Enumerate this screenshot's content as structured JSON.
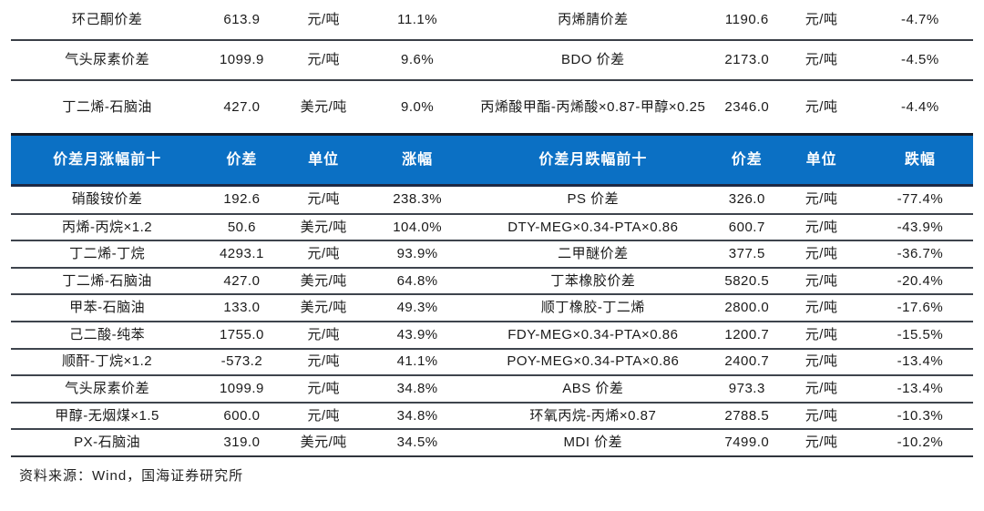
{
  "colors": {
    "header_bg": "#0b70c4",
    "header_text": "#ffffff",
    "row_line": "#3e444d",
    "text": "#1a1a1a"
  },
  "top_table": {
    "description": "continuation rows of spread table above the monthly top-10 section",
    "columns": [
      "name_left",
      "spread_left",
      "unit_left",
      "pct_left",
      "name_right",
      "spread_right",
      "unit_right",
      "pct_right"
    ],
    "rows": [
      [
        "环己酮价差",
        "613.9",
        "元/吨",
        "11.1%",
        "丙烯腈价差",
        "1190.6",
        "元/吨",
        "-4.7%"
      ],
      [
        "气头尿素价差",
        "1099.9",
        "元/吨",
        "9.6%",
        "BDO 价差",
        "2173.0",
        "元/吨",
        "-4.5%"
      ],
      [
        "丁二烯-石脑油",
        "427.0",
        "美元/吨",
        "9.0%",
        "丙烯酸甲酯-丙烯酸×0.87-甲醇×0.25",
        "2346.0",
        "元/吨",
        "-4.4%"
      ]
    ]
  },
  "header": {
    "gainers_title": "价差月涨幅前十",
    "gainers_spread": "价差",
    "gainers_unit": "单位",
    "gainers_change": "涨幅",
    "losers_title": "价差月跌幅前十",
    "losers_spread": "价差",
    "losers_unit": "单位",
    "losers_change": "跌幅"
  },
  "main_table": {
    "columns": [
      "gainer_name",
      "gainer_spread",
      "gainer_unit",
      "gainer_change",
      "loser_name",
      "loser_spread",
      "loser_unit",
      "loser_change"
    ],
    "rows": [
      [
        "硝酸铵价差",
        "192.6",
        "元/吨",
        "238.3%",
        "PS 价差",
        "326.0",
        "元/吨",
        "-77.4%"
      ],
      [
        "丙烯-丙烷×1.2",
        "50.6",
        "美元/吨",
        "104.0%",
        "DTY-MEG×0.34-PTA×0.86",
        "600.7",
        "元/吨",
        "-43.9%"
      ],
      [
        "丁二烯-丁烷",
        "4293.1",
        "元/吨",
        "93.9%",
        "二甲醚价差",
        "377.5",
        "元/吨",
        "-36.7%"
      ],
      [
        "丁二烯-石脑油",
        "427.0",
        "美元/吨",
        "64.8%",
        "丁苯橡胶价差",
        "5820.5",
        "元/吨",
        "-20.4%"
      ],
      [
        "甲苯-石脑油",
        "133.0",
        "美元/吨",
        "49.3%",
        "顺丁橡胶-丁二烯",
        "2800.0",
        "元/吨",
        "-17.6%"
      ],
      [
        "己二酸-纯苯",
        "1755.0",
        "元/吨",
        "43.9%",
        "FDY-MEG×0.34-PTA×0.86",
        "1200.7",
        "元/吨",
        "-15.5%"
      ],
      [
        "顺酐-丁烷×1.2",
        "-573.2",
        "元/吨",
        "41.1%",
        "POY-MEG×0.34-PTA×0.86",
        "2400.7",
        "元/吨",
        "-13.4%"
      ],
      [
        "气头尿素价差",
        "1099.9",
        "元/吨",
        "34.8%",
        "ABS 价差",
        "973.3",
        "元/吨",
        "-13.4%"
      ],
      [
        "甲醇-无烟煤×1.5",
        "600.0",
        "元/吨",
        "34.8%",
        "环氧丙烷-丙烯×0.87",
        "2788.5",
        "元/吨",
        "-10.3%"
      ],
      [
        "PX-石脑油",
        "319.0",
        "美元/吨",
        "34.5%",
        "MDI 价差",
        "7499.0",
        "元/吨",
        "-10.2%"
      ]
    ]
  },
  "footer": {
    "source": "资料来源：Wind，国海证券研究所"
  }
}
